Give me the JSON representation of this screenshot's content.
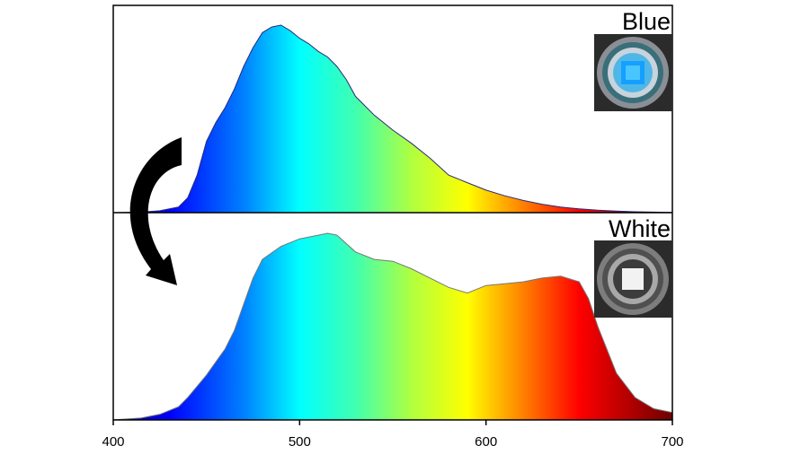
{
  "chart_data": {
    "type": "area",
    "title": "",
    "xlabel": "",
    "ylabel": "",
    "xlim": [
      400,
      700
    ],
    "x_ticks": [
      "400",
      "500",
      "600",
      "700"
    ],
    "x_tick_values": [
      400,
      500,
      600,
      700
    ],
    "colormap": "wavelength spectrum fill (blue to dark red)",
    "colormap_stops": [
      {
        "x": 400,
        "color": "#0000a0"
      },
      {
        "x": 430,
        "color": "#0000ff"
      },
      {
        "x": 470,
        "color": "#0080ff"
      },
      {
        "x": 500,
        "color": "#00ffff"
      },
      {
        "x": 530,
        "color": "#40ffb0"
      },
      {
        "x": 560,
        "color": "#b0ff40"
      },
      {
        "x": 590,
        "color": "#ffff00"
      },
      {
        "x": 620,
        "color": "#ff8000"
      },
      {
        "x": 650,
        "color": "#ff0000"
      },
      {
        "x": 700,
        "color": "#700000"
      }
    ],
    "panels": [
      {
        "label": "Blue",
        "inset": "blue-emitting device photo",
        "line_color": "#2a2a7a",
        "ylim": [
          0,
          1
        ],
        "x": [
          400,
          415,
          425,
          435,
          440,
          445,
          450,
          455,
          460,
          465,
          470,
          475,
          480,
          485,
          490,
          495,
          500,
          505,
          510,
          515,
          520,
          525,
          530,
          540,
          550,
          560,
          570,
          580,
          590,
          600,
          610,
          620,
          630,
          640,
          650,
          660,
          670,
          680,
          690,
          700
        ],
        "y": [
          0.0,
          0.003,
          0.01,
          0.03,
          0.08,
          0.2,
          0.38,
          0.48,
          0.56,
          0.66,
          0.78,
          0.88,
          0.96,
          0.99,
          1.0,
          0.97,
          0.93,
          0.9,
          0.86,
          0.83,
          0.78,
          0.71,
          0.62,
          0.52,
          0.44,
          0.37,
          0.29,
          0.2,
          0.16,
          0.12,
          0.09,
          0.065,
          0.045,
          0.03,
          0.02,
          0.013,
          0.008,
          0.005,
          0.003,
          0.001
        ]
      },
      {
        "label": "White",
        "inset": "white-emitting device photo",
        "line_color": "#777777",
        "ylim": [
          0,
          1
        ],
        "x": [
          400,
          415,
          425,
          435,
          440,
          445,
          450,
          455,
          460,
          465,
          470,
          475,
          480,
          490,
          500,
          510,
          515,
          520,
          530,
          540,
          550,
          560,
          570,
          580,
          590,
          600,
          610,
          620,
          630,
          640,
          650,
          655,
          660,
          670,
          680,
          690,
          700
        ],
        "y": [
          0.0,
          0.01,
          0.03,
          0.07,
          0.12,
          0.18,
          0.24,
          0.31,
          0.38,
          0.48,
          0.62,
          0.76,
          0.86,
          0.93,
          0.97,
          0.99,
          1.0,
          0.99,
          0.9,
          0.86,
          0.85,
          0.81,
          0.76,
          0.71,
          0.68,
          0.72,
          0.73,
          0.74,
          0.76,
          0.77,
          0.74,
          0.65,
          0.5,
          0.25,
          0.12,
          0.06,
          0.04
        ]
      }
    ],
    "annotation": "curved arrow from Blue spectrum to White spectrum"
  }
}
